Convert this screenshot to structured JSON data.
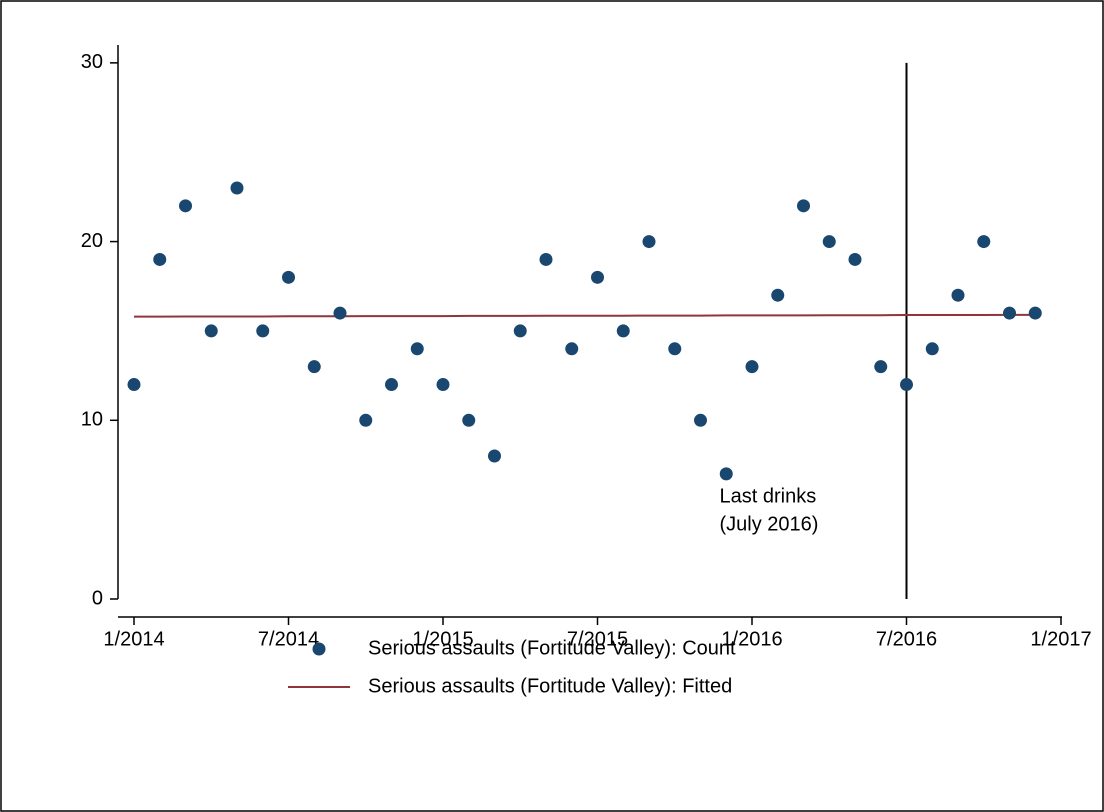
{
  "chart_data": {
    "type": "scatter",
    "x": [
      "1/2014",
      "2/2014",
      "3/2014",
      "4/2014",
      "5/2014",
      "6/2014",
      "7/2014",
      "8/2014",
      "9/2014",
      "10/2014",
      "11/2014",
      "12/2014",
      "1/2015",
      "2/2015",
      "3/2015",
      "4/2015",
      "5/2015",
      "6/2015",
      "7/2015",
      "8/2015",
      "9/2015",
      "10/2015",
      "11/2015",
      "12/2015",
      "1/2016",
      "2/2016",
      "3/2016",
      "4/2016",
      "5/2016",
      "6/2016",
      "7/2016",
      "8/2016",
      "9/2016",
      "10/2016",
      "11/2016",
      "12/2016"
    ],
    "series": [
      {
        "name": "Serious assaults (Fortitude Valley): Count",
        "type": "scatter",
        "color": "#1a476f",
        "values": [
          12,
          19,
          22,
          15,
          23,
          15,
          18,
          13,
          16,
          10,
          12,
          14,
          12,
          10,
          8,
          15,
          19,
          14,
          18,
          15,
          20,
          14,
          10,
          7,
          13,
          17,
          22,
          20,
          19,
          13,
          12,
          14,
          17,
          20,
          16,
          16
        ]
      },
      {
        "name": "Serious assaults (Fortitude Valley): Fitted",
        "type": "line",
        "color": "#90353b",
        "values": [
          15.8,
          15.8,
          15.81,
          15.81,
          15.81,
          15.81,
          15.82,
          15.82,
          15.82,
          15.83,
          15.83,
          15.83,
          15.83,
          15.84,
          15.84,
          15.84,
          15.85,
          15.85,
          15.85,
          15.85,
          15.86,
          15.86,
          15.86,
          15.87,
          15.87,
          15.87,
          15.87,
          15.88,
          15.88,
          15.88,
          15.89,
          15.89,
          15.89,
          15.89,
          15.9,
          15.9
        ]
      }
    ],
    "xlim": [
      "1/2014",
      "1/2017"
    ],
    "xticks": [
      "1/2014",
      "7/2014",
      "1/2015",
      "7/2015",
      "1/2016",
      "7/2016",
      "1/2017"
    ],
    "ylim": [
      0,
      31
    ],
    "yticks": [
      0,
      10,
      20,
      30
    ],
    "vline": {
      "x": "7/2016",
      "color": "#000000"
    },
    "annotation": {
      "x": "7/2016",
      "lines": [
        "Last drinks",
        "(July 2016)"
      ]
    },
    "legend": "bottom"
  }
}
